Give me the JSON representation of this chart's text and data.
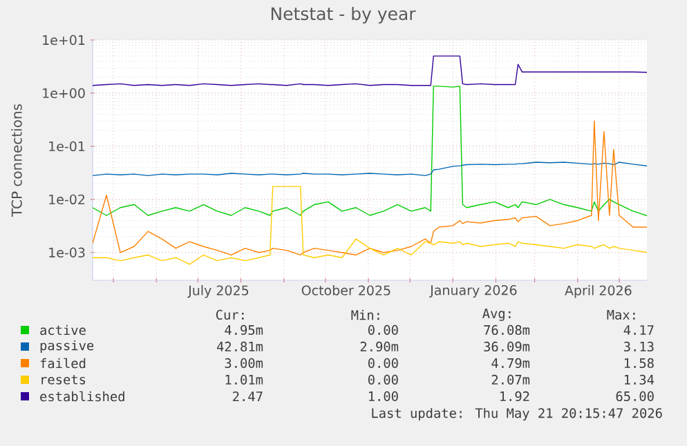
{
  "chart_data": {
    "type": "line",
    "title": "Netstat - by year",
    "ylabel": "TCP connections",
    "log": "y",
    "grid": true,
    "legend": "bottom",
    "x": [
      "2025-04-16",
      "2025-04-26",
      "2025-05-06",
      "2025-05-16",
      "2025-05-26",
      "2025-06-05",
      "2025-06-15",
      "2025-06-25",
      "2025-07-05",
      "2025-07-15",
      "2025-07-25",
      "2025-08-04",
      "2025-08-14",
      "2025-08-22",
      "2025-08-24",
      "2025-09-03",
      "2025-09-13",
      "2025-09-15",
      "2025-09-23",
      "2025-10-03",
      "2025-10-13",
      "2025-10-23",
      "2025-11-02",
      "2025-11-12",
      "2025-11-22",
      "2025-12-02",
      "2025-12-12",
      "2025-12-16",
      "2025-12-18",
      "2025-12-22",
      "2026-01-01",
      "2026-01-06",
      "2026-01-08",
      "2026-01-11",
      "2026-01-21",
      "2026-01-31",
      "2026-02-10",
      "2026-02-15",
      "2026-02-17",
      "2026-02-20",
      "2026-03-02",
      "2026-03-12",
      "2026-03-22",
      "2026-04-01",
      "2026-04-11",
      "2026-04-13",
      "2026-04-16",
      "2026-04-20",
      "2026-04-24",
      "2026-04-27",
      "2026-05-01",
      "2026-05-11",
      "2026-05-21"
    ],
    "xlim": [
      "2025-04-16",
      "2026-05-21"
    ],
    "xticks": [
      {
        "value": "2025-05-01",
        "label": null
      },
      {
        "value": "2025-06-01",
        "label": null
      },
      {
        "value": "2025-07-01",
        "label": null
      },
      {
        "value": "2025-08-01",
        "label": null
      },
      {
        "value": "2025-09-01",
        "label": null
      },
      {
        "value": "2025-10-01",
        "label": null
      },
      {
        "value": "2025-11-01",
        "label": null
      },
      {
        "value": "2025-12-01",
        "label": null
      },
      {
        "value": "2026-01-01",
        "label": null
      },
      {
        "value": "2026-02-01",
        "label": null
      },
      {
        "value": "2026-03-01",
        "label": null
      },
      {
        "value": "2026-04-01",
        "label": null
      },
      {
        "value": "2026-05-01",
        "label": null
      },
      {
        "value": "2025-07-16",
        "label": "July 2025"
      },
      {
        "value": "2025-10-16",
        "label": "October 2025"
      },
      {
        "value": "2026-01-16",
        "label": "January 2026"
      },
      {
        "value": "2026-04-16",
        "label": "April 2026"
      }
    ],
    "ylim": [
      0.0003,
      10
    ],
    "yticks": [
      {
        "value": 0.001,
        "label": "1e-03"
      },
      {
        "value": 0.01,
        "label": "1e-02"
      },
      {
        "value": 0.1,
        "label": "1e-01"
      },
      {
        "value": 1,
        "label": "1e+00"
      },
      {
        "value": 10,
        "label": "1e+01"
      }
    ],
    "series": [
      {
        "name": "active",
        "color": "#00cc00",
        "values": [
          0.007,
          0.005,
          0.007,
          0.008,
          0.005,
          0.006,
          0.007,
          0.006,
          0.008,
          0.006,
          0.005,
          0.007,
          0.006,
          0.005,
          0.006,
          0.007,
          0.005,
          0.006,
          0.008,
          0.009,
          0.006,
          0.007,
          0.005,
          0.006,
          0.008,
          0.006,
          0.007,
          0.006,
          1.35,
          1.35,
          1.3,
          1.35,
          0.008,
          0.007,
          0.008,
          0.009,
          0.007,
          0.008,
          0.007,
          0.009,
          0.008,
          0.01,
          0.008,
          0.007,
          0.006,
          0.009,
          0.006,
          0.008,
          0.01,
          0.009,
          0.008,
          0.006,
          0.00495
        ]
      },
      {
        "name": "passive",
        "color": "#0066b3",
        "values": [
          0.028,
          0.03,
          0.029,
          0.03,
          0.028,
          0.03,
          0.029,
          0.03,
          0.03,
          0.029,
          0.031,
          0.03,
          0.029,
          0.03,
          0.03,
          0.029,
          0.03,
          0.031,
          0.03,
          0.03,
          0.029,
          0.03,
          0.031,
          0.03,
          0.029,
          0.03,
          0.028,
          0.03,
          0.036,
          0.037,
          0.042,
          0.043,
          0.044,
          0.045,
          0.046,
          0.045,
          0.046,
          0.046,
          0.047,
          0.047,
          0.05,
          0.049,
          0.05,
          0.048,
          0.046,
          0.047,
          0.046,
          0.048,
          0.047,
          0.045,
          0.05,
          0.046,
          0.0428
        ]
      },
      {
        "name": "failed",
        "color": "#ff8000",
        "values": [
          0.0015,
          0.012,
          0.001,
          0.0013,
          0.0025,
          0.0018,
          0.0012,
          0.0016,
          0.0013,
          0.0011,
          0.0009,
          0.0012,
          0.001,
          0.0011,
          0.0012,
          0.0011,
          0.0009,
          0.001,
          0.0012,
          0.0011,
          0.001,
          0.0009,
          0.0012,
          0.001,
          0.0011,
          0.0013,
          0.0018,
          0.0015,
          0.0025,
          0.003,
          0.0032,
          0.004,
          0.0035,
          0.0038,
          0.0036,
          0.004,
          0.0042,
          0.0045,
          0.0038,
          0.0045,
          0.0048,
          0.0032,
          0.0035,
          0.004,
          0.005,
          0.3,
          0.004,
          0.19,
          0.005,
          0.087,
          0.005,
          0.003,
          0.003
        ]
      },
      {
        "name": "resets",
        "color": "#ffcc00",
        "values": [
          0.0008,
          0.0008,
          0.0007,
          0.0008,
          0.0009,
          0.0007,
          0.0008,
          0.0006,
          0.0009,
          0.0007,
          0.0008,
          0.0007,
          0.0008,
          0.0009,
          0.0175,
          0.0175,
          0.0175,
          0.0009,
          0.0008,
          0.0009,
          0.0008,
          0.0018,
          0.0012,
          0.0009,
          0.0012,
          0.0009,
          0.0016,
          0.0015,
          0.0014,
          0.0016,
          0.0015,
          0.0016,
          0.0014,
          0.0015,
          0.0013,
          0.0014,
          0.0015,
          0.0013,
          0.0016,
          0.0015,
          0.0014,
          0.0013,
          0.0012,
          0.0014,
          0.0013,
          0.0012,
          0.0013,
          0.0014,
          0.0012,
          0.0013,
          0.0012,
          0.0011,
          0.00101
        ]
      },
      {
        "name": "established",
        "color": "#330099",
        "values": [
          1.4,
          1.45,
          1.5,
          1.4,
          1.45,
          1.4,
          1.45,
          1.4,
          1.5,
          1.45,
          1.4,
          1.45,
          1.5,
          1.45,
          1.45,
          1.4,
          1.5,
          1.45,
          1.45,
          1.4,
          1.45,
          1.5,
          1.4,
          1.45,
          1.45,
          1.4,
          1.4,
          1.4,
          5.0,
          5.0,
          5.0,
          5.0,
          1.5,
          1.45,
          1.5,
          1.45,
          1.45,
          1.45,
          3.5,
          2.5,
          2.5,
          2.5,
          2.5,
          2.5,
          2.5,
          2.5,
          2.5,
          2.5,
          2.5,
          2.5,
          2.5,
          2.5,
          2.47
        ]
      }
    ],
    "annotations": [
      "Cur:",
      "Min:",
      "Avg:",
      "Max:",
      "4.95m",
      "0.00",
      "76.08m",
      "4.17",
      "42.81m",
      "2.90m",
      "36.09m",
      "3.13",
      "3.00m",
      "0.00",
      "4.79m",
      "1.58",
      "1.01m",
      "0.00",
      "2.07m",
      "1.34",
      "2.47",
      "1.00",
      "1.92",
      "65.00",
      "Last update: Thu May 21 20:15:47 2026"
    ]
  }
}
